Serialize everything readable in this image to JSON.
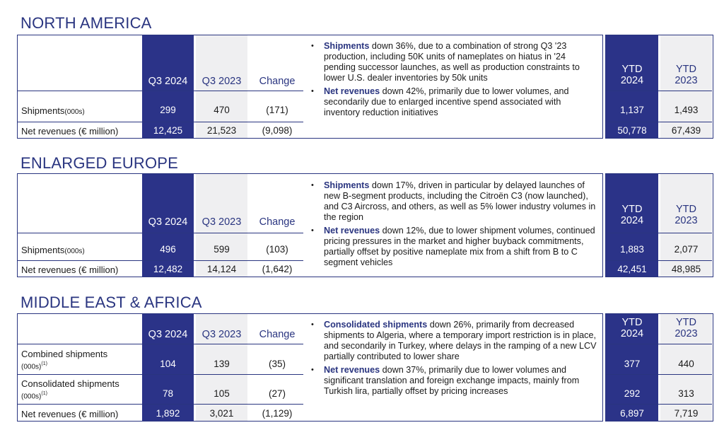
{
  "headers": {
    "q3_2024": "Q3 2024",
    "q3_2023": "Q3 2023",
    "change": "Change",
    "ytd_2024_line1": "YTD",
    "ytd_2024_line2": "2024",
    "ytd_2023_line1": "YTD",
    "ytd_2023_line2": "2023"
  },
  "north_america": {
    "title": "NORTH AMERICA",
    "rows": [
      {
        "label": "Shipments",
        "label_unit": "(000s)",
        "q3_2024": "299",
        "q3_2023": "470",
        "change": "(171)",
        "ytd_2024": "1,137",
        "ytd_2023": "1,493"
      },
      {
        "label": "Net revenues (€ million)",
        "q3_2024": "12,425",
        "q3_2023": "21,523",
        "change": "(9,098)",
        "ytd_2024": "50,778",
        "ytd_2023": "67,439"
      }
    ],
    "bullets": [
      {
        "bold": "Shipments",
        "text": " down 36%, due to a combination of strong Q3 '23 production, including 50K units of nameplates on hiatus in '24 pending successor launches, as well as production constraints to lower U.S. dealer inventories by 50k units"
      },
      {
        "bold": "Net revenues",
        "text": " down 42%, primarily due to lower volumes, and secondarily due to enlarged incentive spend associated with inventory reduction initiatives"
      }
    ]
  },
  "enlarged_europe": {
    "title": "ENLARGED EUROPE",
    "rows": [
      {
        "label": "Shipments",
        "label_unit": "(000s)",
        "q3_2024": "496",
        "q3_2023": "599",
        "change": "(103)",
        "ytd_2024": "1,883",
        "ytd_2023": "2,077"
      },
      {
        "label": "Net revenues (€ million)",
        "q3_2024": "12,482",
        "q3_2023": "14,124",
        "change": "(1,642)",
        "ytd_2024": "42,451",
        "ytd_2023": "48,985"
      }
    ],
    "bullets": [
      {
        "bold": "Shipments",
        "text": " down 17%, driven in particular by delayed launches of new B-segment products, including the Citroën C3 (now launched), and C3 Aircross, and others, as well as 5% lower industry volumes in the region"
      },
      {
        "bold": "Net revenues",
        "text": " down 12%, due to lower shipment volumes, continued pricing pressures in the market and higher buyback commitments, partially offset by positive nameplate mix from a shift from B to C segment vehicles"
      }
    ]
  },
  "middle_east_africa": {
    "title": "MIDDLE EAST & AFRICA",
    "rows": [
      {
        "label": "Combined shipments",
        "label_unit": "(000s)",
        "footnote": "(1)",
        "q3_2024": "104",
        "q3_2023": "139",
        "change": "(35)",
        "ytd_2024": "377",
        "ytd_2023": "440"
      },
      {
        "label": "Consolidated shipments",
        "label_unit": "(000s)",
        "footnote": "(1)",
        "q3_2024": "78",
        "q3_2023": "105",
        "change": "(27)",
        "ytd_2024": "292",
        "ytd_2023": "313"
      },
      {
        "label": "Net revenues (€ million)",
        "q3_2024": "1,892",
        "q3_2023": "3,021",
        "change": "(1,129)",
        "ytd_2024": "6,897",
        "ytd_2023": "7,719"
      }
    ],
    "bullets": [
      {
        "bold": "Consolidated shipments",
        "text": " down 26%, primarily from decreased shipments to Algeria, where a temporary import restriction is in place, and secondarily in Turkey, where delays in the ramping of a new LCV partially contributed to lower share"
      },
      {
        "bold": "Net revenues",
        "text": " down 37%, primarily due to lower volumes and significant translation and foreign exchange impacts, mainly from Turkish lira, partially offset by pricing increases"
      }
    ]
  }
}
